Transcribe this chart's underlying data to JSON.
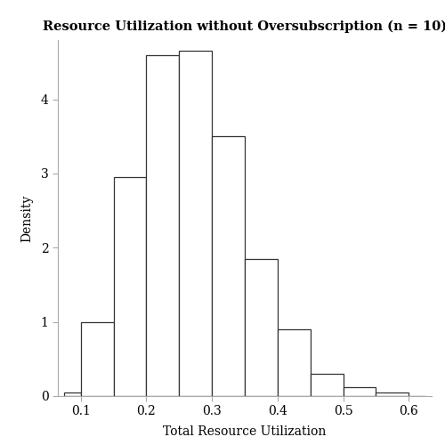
{
  "title": "Resource Utilization without Oversubscription (n = 10)",
  "xlabel": "Total Resource Utilization",
  "ylabel": "Density",
  "xlim": [
    0.065,
    0.635
  ],
  "ylim": [
    0,
    4.8
  ],
  "xticks": [
    0.1,
    0.2,
    0.3,
    0.4,
    0.5,
    0.6
  ],
  "yticks": [
    0,
    1,
    2,
    3,
    4
  ],
  "bin_edges": [
    0.075,
    0.1,
    0.15,
    0.2,
    0.25,
    0.3,
    0.35,
    0.4,
    0.45,
    0.5,
    0.55,
    0.6,
    0.625
  ],
  "bin_heights": [
    0.05,
    1.0,
    2.95,
    4.6,
    4.65,
    3.5,
    1.85,
    0.9,
    0.3,
    0.12,
    0.05,
    0.0
  ],
  "bar_facecolor": "#ffffff",
  "bar_edgecolor": "#333333",
  "spine_color": "#aaaaaa",
  "bg_color": "#ffffff",
  "title_fontsize": 10.5,
  "label_fontsize": 10,
  "tick_fontsize": 10
}
